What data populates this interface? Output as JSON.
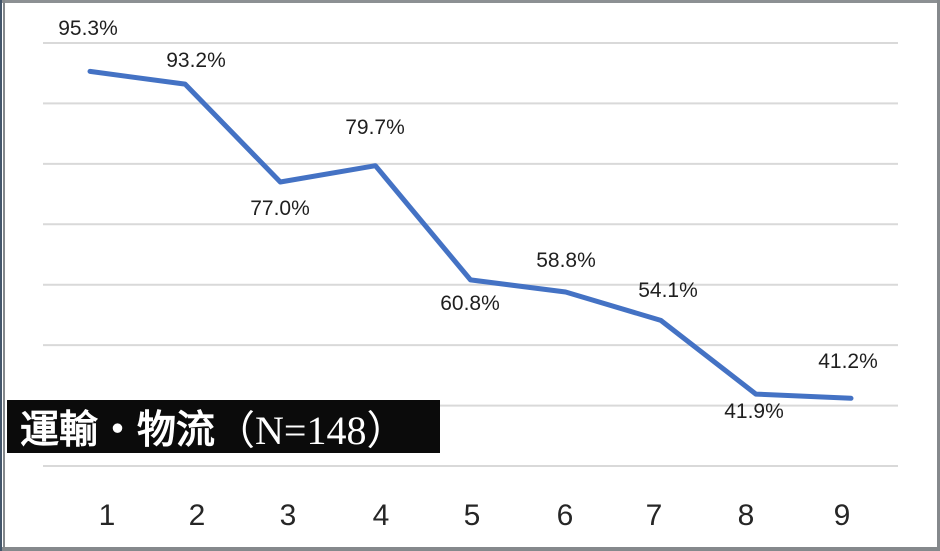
{
  "chart_data": {
    "type": "line",
    "title": "",
    "xlabel": "",
    "ylabel": "",
    "categories": [
      "1",
      "2",
      "3",
      "4",
      "5",
      "6",
      "7",
      "8",
      "9"
    ],
    "values": [
      95.3,
      93.2,
      77.0,
      79.7,
      60.8,
      58.8,
      54.1,
      41.9,
      41.2
    ],
    "point_labels": [
      "95.3%",
      "93.2%",
      "77.0%",
      "79.7%",
      "60.8%",
      "58.8%",
      "54.1%",
      "41.9%",
      "41.2%"
    ],
    "ylim": [
      30,
      100
    ],
    "grid_step": 10,
    "grid": "horizontal gridlines only, no axis labels on y",
    "legend": "none",
    "line_color": "#4472C4",
    "gridline_color": "#D9D9D9"
  },
  "series_box": {
    "label_jp": "運輸・物流",
    "label_n": "（N=148）",
    "bg_color": "#0B0B0B",
    "text_color": "#FFFFFF"
  }
}
